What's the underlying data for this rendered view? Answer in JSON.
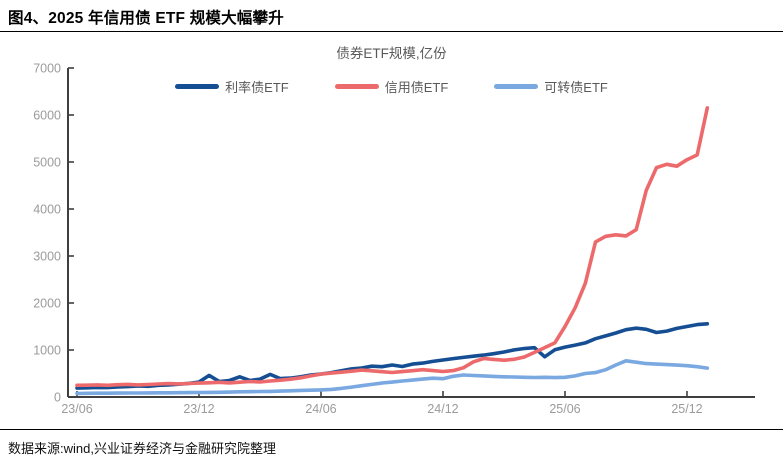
{
  "header": {
    "title": "图4、2025 年信用债 ETF 规模大幅攀升"
  },
  "chart_data": {
    "type": "line",
    "title": "债券ETF规模,亿份",
    "xlabel": "",
    "ylabel": "亿份",
    "ylim": [
      0,
      7000
    ],
    "yticks": [
      0,
      1000,
      2000,
      3000,
      4000,
      5000,
      6000,
      7000
    ],
    "grid": false,
    "legend_position": "top",
    "x_unit": "months since 2023-06 (half-month sampling)",
    "xticks": [
      {
        "m": 0,
        "label": "23/06"
      },
      {
        "m": 6,
        "label": "23/12"
      },
      {
        "m": 12,
        "label": "24/06"
      },
      {
        "m": 18,
        "label": "24/12"
      },
      {
        "m": 24,
        "label": "25/06"
      },
      {
        "m": 30,
        "label": "25/12"
      }
    ],
    "x": [
      0,
      0.5,
      1,
      1.5,
      2,
      2.5,
      3,
      3.5,
      4,
      4.5,
      5,
      5.5,
      6,
      6.5,
      7,
      7.5,
      8,
      8.5,
      9,
      9.5,
      10,
      10.5,
      11,
      11.5,
      12,
      12.5,
      13,
      13.5,
      14,
      14.5,
      15,
      15.5,
      16,
      16.5,
      17,
      17.5,
      18,
      18.5,
      19,
      19.5,
      20,
      20.5,
      21,
      21.5,
      22,
      22.5,
      23,
      23.5,
      24,
      24.5,
      25,
      25.5,
      26,
      26.5,
      27,
      27.5,
      28,
      28.5,
      29,
      29.5,
      30,
      30.5,
      31
    ],
    "series": [
      {
        "key": "rate-bond-etf",
        "name": "利率债ETF",
        "color": "#154e92",
        "values": [
          190,
          195,
          205,
          200,
          215,
          222,
          235,
          228,
          248,
          258,
          272,
          290,
          320,
          460,
          330,
          352,
          430,
          352,
          380,
          480,
          392,
          402,
          430,
          468,
          490,
          520,
          558,
          598,
          618,
          655,
          645,
          680,
          648,
          700,
          722,
          758,
          788,
          818,
          842,
          868,
          892,
          922,
          958,
          1002,
          1032,
          1048,
          855,
          1005,
          1062,
          1105,
          1152,
          1240,
          1300,
          1362,
          1432,
          1465,
          1440,
          1372,
          1402,
          1460,
          1500,
          1540,
          1558
        ]
      },
      {
        "key": "credit-bond-etf",
        "name": "信用债ETF",
        "color": "#ed6a6c",
        "values": [
          250,
          252,
          258,
          250,
          262,
          268,
          258,
          266,
          276,
          285,
          278,
          288,
          295,
          302,
          312,
          300,
          315,
          330,
          320,
          340,
          358,
          378,
          408,
          448,
          488,
          508,
          528,
          548,
          572,
          558,
          538,
          522,
          540,
          560,
          580,
          562,
          542,
          562,
          622,
          748,
          820,
          800,
          782,
          802,
          852,
          948,
          1050,
          1152,
          1500,
          1900,
          2420,
          3300,
          3420,
          3450,
          3428,
          3560,
          4400,
          4880,
          4950,
          4910,
          5050,
          5150,
          6150
        ]
      },
      {
        "key": "convertible-bond-etf",
        "name": "可转债ETF",
        "color": "#7aa8e0",
        "values": [
          75,
          78,
          80,
          80,
          82,
          85,
          85,
          88,
          90,
          90,
          92,
          94,
          95,
          98,
          100,
          104,
          110,
          112,
          116,
          120,
          126,
          132,
          140,
          145,
          152,
          162,
          182,
          210,
          240,
          268,
          298,
          318,
          340,
          360,
          380,
          400,
          390,
          440,
          468,
          458,
          448,
          438,
          430,
          425,
          420,
          415,
          420,
          412,
          420,
          448,
          500,
          520,
          580,
          680,
          770,
          740,
          710,
          700,
          690,
          678,
          665,
          645,
          615
        ]
      }
    ],
    "axis_color": "#3f3f3f",
    "tick_label_color": "#9b9b9b"
  },
  "footer": {
    "source": "数据来源:wind,兴业证券经济与金融研究院整理"
  }
}
